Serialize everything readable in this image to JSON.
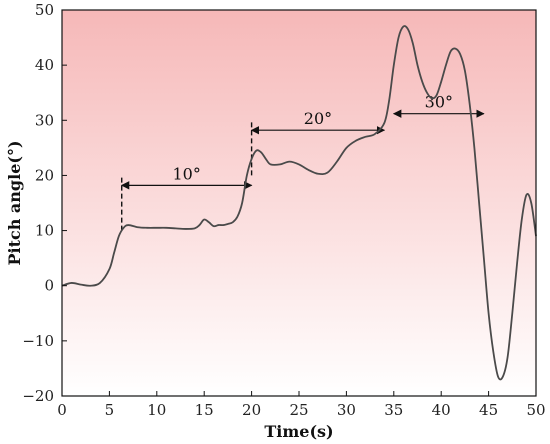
{
  "chart_data": {
    "type": "line",
    "title": "",
    "xlabel": "Time(s)",
    "ylabel": "Pitch angle(°)",
    "xlim": [
      0,
      50
    ],
    "ylim": [
      -20,
      50
    ],
    "xticks": [
      0,
      5,
      10,
      15,
      20,
      25,
      30,
      35,
      40,
      45,
      50
    ],
    "yticks": [
      -20,
      -10,
      0,
      10,
      20,
      30,
      40,
      50
    ],
    "grid": false,
    "background": "gradient from light red (top) to white (bottom)",
    "series": [
      {
        "color": "#4a4a4a",
        "x": [
          0,
          1,
          2,
          3,
          4,
          5,
          5.5,
          6,
          6.5,
          7,
          8,
          9,
          10,
          11,
          12,
          13,
          14,
          14.5,
          15,
          15.5,
          16,
          16.5,
          17,
          17.5,
          18,
          18.5,
          19,
          19.5,
          20,
          20.5,
          21,
          21.5,
          22,
          23,
          24,
          25,
          26,
          27,
          28,
          29,
          30,
          31,
          32,
          33,
          34,
          34.5,
          35,
          35.5,
          36,
          36.5,
          37,
          37.5,
          38,
          38.5,
          39,
          39.5,
          40,
          40.5,
          41,
          41.5,
          42,
          42.5,
          43,
          43.5,
          44,
          44.5,
          45,
          45.5,
          46,
          46.5,
          47,
          47.5,
          48,
          48.5,
          49,
          49.5,
          50
        ],
        "y": [
          0,
          0.5,
          0.2,
          0,
          0.5,
          3,
          6,
          9,
          10.5,
          11,
          10.6,
          10.5,
          10.5,
          10.5,
          10.4,
          10.3,
          10.4,
          11,
          12,
          11.5,
          10.8,
          11,
          11,
          11.2,
          11.5,
          12.5,
          15,
          20,
          23,
          24.5,
          24.2,
          23,
          22,
          22,
          22.5,
          22,
          21,
          20.3,
          20.5,
          22.5,
          25,
          26.3,
          27,
          27.5,
          29.5,
          33.5,
          40,
          45,
          47,
          46.5,
          44,
          40,
          37,
          35,
          34,
          34.5,
          37,
          40,
          42.5,
          43,
          42,
          39,
          33,
          25,
          15,
          5,
          -5,
          -12,
          -16.5,
          -16.5,
          -13,
          -5,
          4,
          12,
          16.5,
          15,
          9
        ]
      }
    ],
    "annotations": [
      {
        "text": "10°",
        "x_from": 6.3,
        "x_to": 20,
        "y": 18.2,
        "dashed_marker_x": 6.3,
        "dashed_marker_y_range": [
          10,
          20
        ]
      },
      {
        "text": "20°",
        "x_from": 20,
        "x_to": 34,
        "y": 28.2,
        "dashed_marker_x": 20,
        "dashed_marker_y_range": [
          20,
          30
        ]
      },
      {
        "text": "30°",
        "x_from": 35,
        "x_to": 44.5,
        "y": 31.2
      }
    ]
  }
}
